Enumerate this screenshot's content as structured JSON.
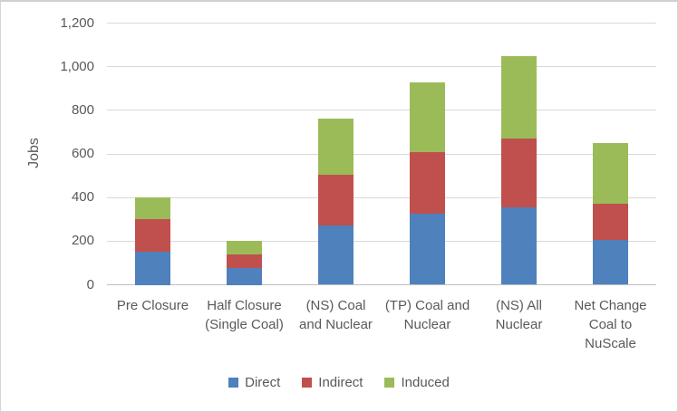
{
  "chart_data": {
    "type": "bar",
    "stacked": true,
    "ylabel": "Jobs",
    "xlabel": "",
    "ylim": [
      0,
      1200
    ],
    "ytick_interval": 200,
    "ytick_labels": [
      "0",
      "200",
      "400",
      "600",
      "800",
      "1,000",
      "1,200"
    ],
    "grid": true,
    "legend_position": "bottom",
    "categories": [
      "Pre Closure",
      "Half Closure (Single Coal)",
      "(NS) Coal and Nuclear",
      "(TP) Coal and Nuclear",
      "(NS) All Nuclear",
      "Net Change Coal to NuScale"
    ],
    "category_label_lines": [
      [
        "Pre Closure"
      ],
      [
        "Half Closure",
        "(Single Coal)"
      ],
      [
        "(NS) Coal",
        "and Nuclear"
      ],
      [
        "(TP) Coal and",
        "Nuclear"
      ],
      [
        "(NS) All",
        "Nuclear"
      ],
      [
        "Net Change",
        "Coal to",
        "NuScale"
      ]
    ],
    "series": [
      {
        "name": "Direct",
        "color": "#4F81BD",
        "values": [
          150,
          75,
          270,
          325,
          355,
          205
        ]
      },
      {
        "name": "Indirect",
        "color": "#C0504D",
        "values": [
          150,
          65,
          235,
          285,
          315,
          165
        ]
      },
      {
        "name": "Induced",
        "color": "#9BBB59",
        "values": [
          100,
          60,
          255,
          320,
          380,
          280
        ]
      }
    ]
  },
  "styles": {
    "gridline_color": "#D9D9D9",
    "axis_line_color": "#BFBFBF",
    "text_color": "#595959",
    "background": "#FFFFFF",
    "border_color": "#D5D5D5"
  }
}
